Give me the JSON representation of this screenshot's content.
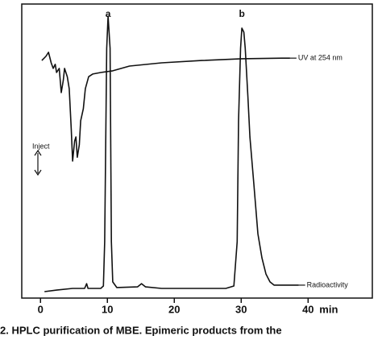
{
  "chart_data": {
    "type": "line",
    "caption": "2. HPLC purification of MBE. Epimeric products from the",
    "xlabel": "min",
    "xlim": [
      -2.8,
      49.6
    ],
    "ylim": [
      0,
      100
    ],
    "xticks": [
      0,
      10,
      20,
      30,
      40
    ],
    "annotations": [
      {
        "text": "a",
        "x": 10.1
      },
      {
        "text": "b",
        "x": 30.1
      },
      {
        "text": "Inject"
      }
    ],
    "series": [
      {
        "name": "UV at 254 nm",
        "color": "#111111",
        "x": [
          0.2,
          0.8,
          1.2,
          1.6,
          1.9,
          2.2,
          2.4,
          2.8,
          3.1,
          3.4,
          3.6,
          4.0,
          4.3,
          4.6,
          4.8,
          5.1,
          5.3,
          5.5,
          5.8,
          6.0,
          6.4,
          6.7,
          7.2,
          7.8,
          9.0,
          10.8,
          13.3,
          18.1,
          24.1,
          30.1,
          36.1,
          37.3
        ],
        "values": [
          80.8,
          82.2,
          83.6,
          80.0,
          78.1,
          79.5,
          76.7,
          78.1,
          69.9,
          74.0,
          78.1,
          75.3,
          71.2,
          57.5,
          46.6,
          53.4,
          54.8,
          47.9,
          52.1,
          60.3,
          64.4,
          71.2,
          75.3,
          76.2,
          76.7,
          77.3,
          78.9,
          80.0,
          80.8,
          81.4,
          81.6,
          81.6
        ]
      },
      {
        "name": "Radioactivity",
        "color": "#111111",
        "x": [
          0.6,
          2.4,
          4.8,
          6.6,
          6.9,
          7.1,
          9.0,
          9.4,
          9.6,
          9.9,
          10.1,
          10.4,
          10.6,
          10.8,
          11.4,
          14.5,
          15.1,
          15.7,
          18.1,
          27.7,
          28.9,
          29.4,
          29.6,
          29.9,
          30.1,
          30.4,
          30.6,
          31.0,
          31.3,
          31.9,
          32.5,
          33.1,
          33.7,
          34.3,
          34.9,
          38.6
        ],
        "values": [
          2.2,
          2.7,
          3.3,
          3.3,
          4.9,
          3.3,
          3.3,
          4.1,
          19.2,
          84.9,
          95.9,
          84.9,
          19.2,
          5.5,
          3.6,
          3.8,
          4.9,
          3.8,
          3.3,
          3.3,
          4.1,
          19.2,
          60.3,
          84.9,
          91.8,
          90.4,
          84.9,
          68.5,
          54.8,
          38.4,
          21.9,
          13.7,
          8.2,
          5.5,
          4.4,
          4.4
        ]
      }
    ]
  }
}
